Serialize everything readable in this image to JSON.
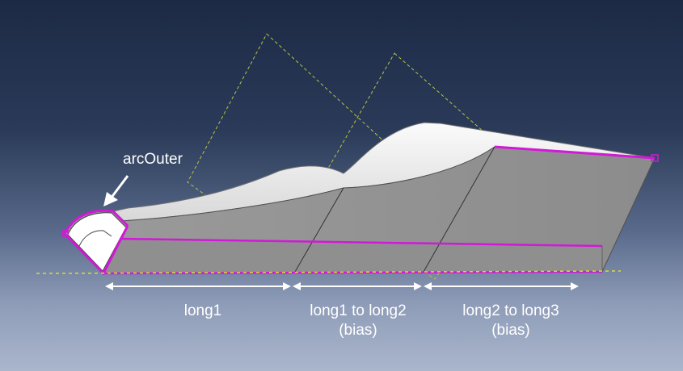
{
  "callout": {
    "label": "arcOuter"
  },
  "dimensions": [
    {
      "lines": [
        "long1"
      ]
    },
    {
      "lines": [
        "long1 to long2",
        "(bias)"
      ]
    },
    {
      "lines": [
        "long2 to long3",
        "(bias)"
      ]
    }
  ],
  "colors": {
    "background_top": "#1c2a45",
    "background_bottom": "#aab6cc",
    "face_gray": "#8e8e8e",
    "face_light": "#e6e6e6",
    "edge_highlight": "#d218d8",
    "datum_line": "#d8e030",
    "arrow_white": "#ffffff"
  }
}
